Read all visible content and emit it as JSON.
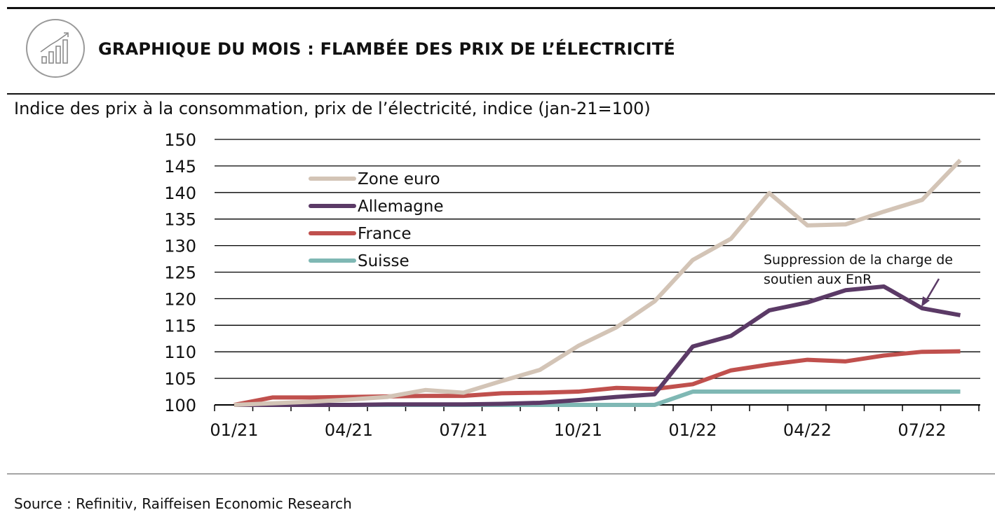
{
  "header": {
    "title": "GRAPHIQUE DU MOIS : FLAMBÉE DES PRIX DE L’ÉLECTRICITÉ",
    "logo_icon": "bar-chart-trend-icon"
  },
  "subtitle": "Indice des prix à la consommation, prix de l’électricité, indice (jan-21=100)",
  "footer": {
    "source": "Source : Refinitiv, Raiffeisen Economic Research"
  },
  "chart_data": {
    "type": "line",
    "x": [
      "01/21",
      "02/21",
      "03/21",
      "04/21",
      "05/21",
      "06/21",
      "07/21",
      "08/21",
      "09/21",
      "10/21",
      "11/21",
      "12/21",
      "01/22",
      "02/22",
      "03/22",
      "04/22",
      "05/22",
      "06/22",
      "07/22",
      "08/22"
    ],
    "x_tick_labels": [
      "01/21",
      "04/21",
      "07/21",
      "10/21",
      "01/22",
      "04/22",
      "07/22"
    ],
    "ylim": [
      100,
      150
    ],
    "y_ticks": [
      100,
      105,
      110,
      115,
      120,
      125,
      130,
      135,
      140,
      145,
      150
    ],
    "grid": true,
    "legend_position": "top-left",
    "series": [
      {
        "name": "Zone euro",
        "color": "#d3c4b6",
        "values": [
          100,
          100.3,
          100.6,
          101.0,
          101.5,
          102.8,
          102.3,
          104.5,
          106.6,
          111.1,
          114.6,
          119.5,
          127.3,
          131.3,
          139.9,
          133.8,
          134.0,
          136.4,
          138.6,
          146.1
        ]
      },
      {
        "name": "Allemagne",
        "color": "#5b3a66",
        "values": [
          100,
          100.0,
          100.0,
          100.0,
          100.1,
          100.1,
          100.1,
          100.2,
          100.4,
          100.9,
          101.5,
          102.0,
          111.0,
          113.0,
          117.8,
          119.3,
          121.6,
          122.3,
          118.2,
          116.9
        ]
      },
      {
        "name": "France",
        "color": "#c0504d",
        "values": [
          100,
          101.4,
          101.4,
          101.5,
          101.6,
          101.7,
          101.7,
          102.2,
          102.3,
          102.5,
          103.2,
          103.0,
          103.9,
          106.5,
          107.6,
          108.5,
          108.2,
          109.3,
          110.0,
          110.1
        ]
      },
      {
        "name": "Suisse",
        "color": "#7fb8b4",
        "values": [
          100,
          100,
          100,
          100,
          100,
          100,
          100,
          100,
          100,
          100,
          100,
          100,
          102.5,
          102.5,
          102.5,
          102.5,
          102.5,
          102.5,
          102.5,
          102.5
        ]
      }
    ],
    "annotation": {
      "text_line1": "Suppression de la charge de",
      "text_line2": "soutien aux EnR"
    }
  }
}
